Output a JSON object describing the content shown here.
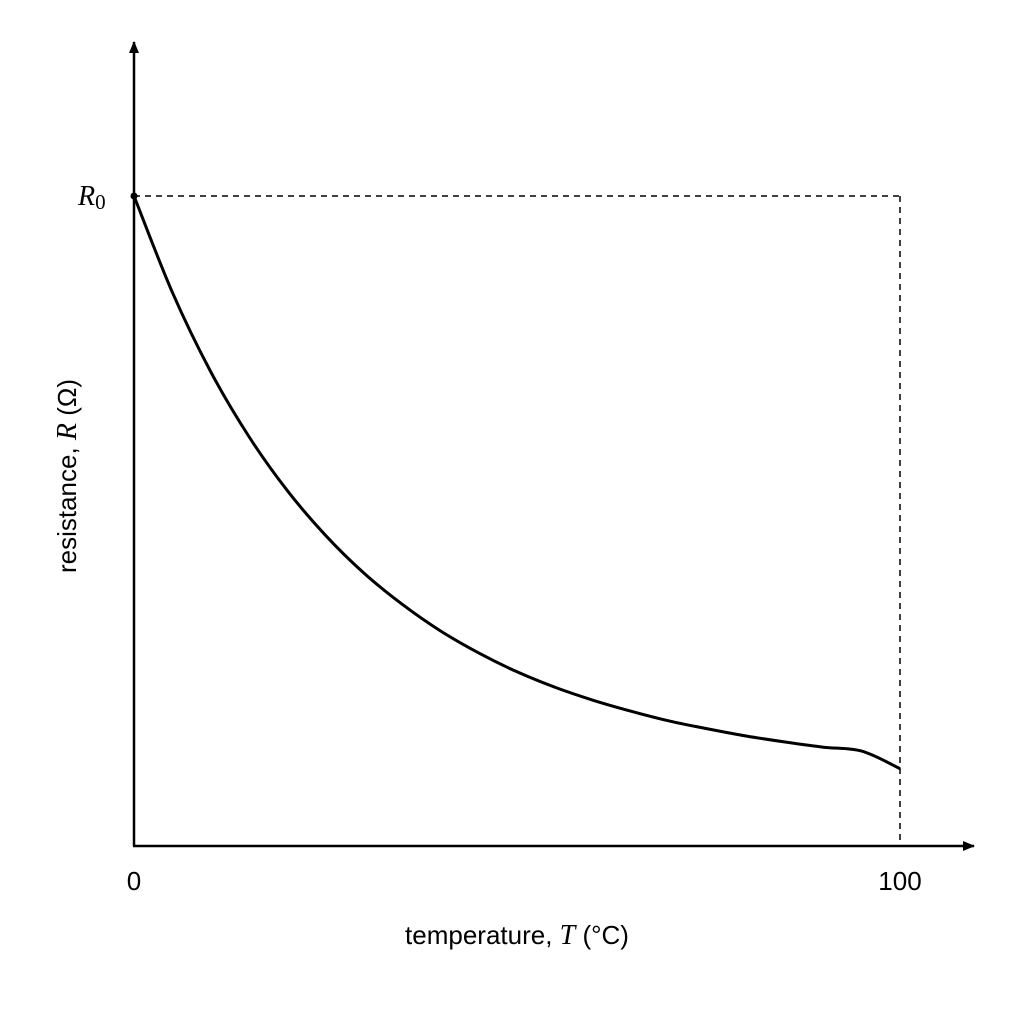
{
  "chart_data": {
    "type": "line",
    "title": "",
    "xlabel": {
      "prefix": "temperature, ",
      "symbol": "T",
      "unit": " (°C)"
    },
    "ylabel": {
      "prefix": "resistance, ",
      "symbol": "R",
      "unit": " (Ω)"
    },
    "x_ticks": [
      "0",
      "100"
    ],
    "y_reference_label": {
      "symbol": "R",
      "subscript": "0"
    },
    "xlim": [
      0,
      100
    ],
    "ylim_fraction_of_R0": [
      0,
      1.0
    ],
    "series": [
      {
        "x": [
          0,
          5,
          10,
          15,
          20,
          25,
          30,
          35,
          40,
          45,
          50,
          55,
          60,
          65,
          70,
          75,
          80,
          85,
          90,
          95,
          100
        ],
        "y_fraction_of_R0": [
          1.0,
          0.852,
          0.73,
          0.63,
          0.547,
          0.478,
          0.42,
          0.372,
          0.331,
          0.297,
          0.268,
          0.244,
          0.224,
          0.207,
          0.192,
          0.18,
          0.169,
          0.16,
          0.152,
          0.146,
          0.119
        ]
      }
    ],
    "reference_lines": [
      {
        "kind": "horizontal",
        "y_fraction_of_R0": 1.0,
        "from_x": 0,
        "to_x": 100,
        "style": "dashed"
      },
      {
        "kind": "vertical",
        "x": 100,
        "from_y_fraction": 0,
        "to_y_fraction": 1.0,
        "style": "dashed"
      }
    ],
    "grid": false,
    "legend": "none",
    "colors": {
      "line": "#000000",
      "axes": "#000000"
    }
  }
}
